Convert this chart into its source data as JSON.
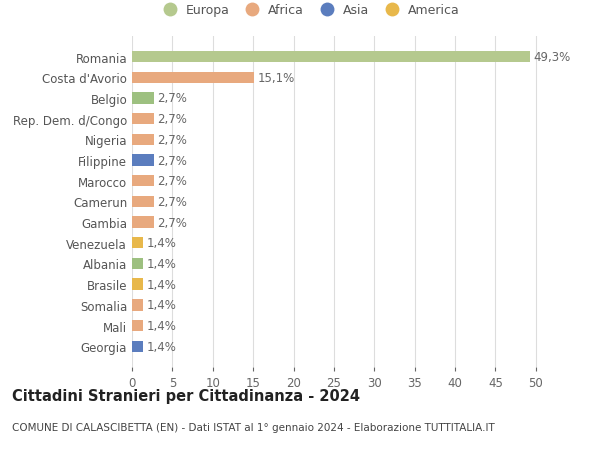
{
  "categories": [
    "Georgia",
    "Mali",
    "Somalia",
    "Brasile",
    "Albania",
    "Venezuela",
    "Gambia",
    "Camerun",
    "Marocco",
    "Filippine",
    "Nigeria",
    "Rep. Dem. d/Congo",
    "Belgio",
    "Costa d'Avorio",
    "Romania"
  ],
  "values": [
    1.4,
    1.4,
    1.4,
    1.4,
    1.4,
    1.4,
    2.7,
    2.7,
    2.7,
    2.7,
    2.7,
    2.7,
    2.7,
    15.1,
    49.3
  ],
  "labels": [
    "1,4%",
    "1,4%",
    "1,4%",
    "1,4%",
    "1,4%",
    "1,4%",
    "2,7%",
    "2,7%",
    "2,7%",
    "2,7%",
    "2,7%",
    "2,7%",
    "2,7%",
    "15,1%",
    "49,3%"
  ],
  "colors": [
    "#5b7dbe",
    "#e8a97e",
    "#e8a97e",
    "#e8b84b",
    "#9dc080",
    "#e8b84b",
    "#e8a97e",
    "#e8a97e",
    "#e8a97e",
    "#5b7dbe",
    "#e8a97e",
    "#e8a97e",
    "#9dc080",
    "#e8a97e",
    "#b5c98e"
  ],
  "continent_colors": {
    "Europa": "#b5c98e",
    "Africa": "#e8a97e",
    "Asia": "#5b7dbe",
    "America": "#e8b84b"
  },
  "xlim": [
    0,
    52
  ],
  "xticks": [
    0,
    5,
    10,
    15,
    20,
    25,
    30,
    35,
    40,
    45,
    50
  ],
  "title": "Cittadini Stranieri per Cittadinanza - 2024",
  "subtitle": "COMUNE DI CALASCIBETTA (EN) - Dati ISTAT al 1° gennaio 2024 - Elaborazione TUTTITALIA.IT",
  "background_color": "#ffffff",
  "grid_color": "#dddddd",
  "bar_height": 0.55,
  "label_fontsize": 8.5,
  "tick_label_fontsize": 8.5,
  "title_fontsize": 10.5,
  "subtitle_fontsize": 7.5
}
